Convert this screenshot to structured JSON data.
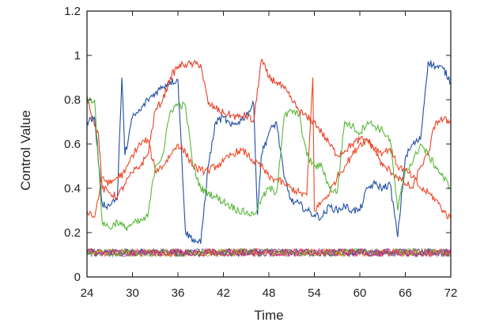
{
  "chart_data": {
    "type": "line",
    "xlabel": "Time",
    "ylabel": "Control Value",
    "xlim": [
      24,
      72
    ],
    "ylim": [
      0,
      1.2
    ],
    "x_ticks": [
      "24",
      "30",
      "36",
      "42",
      "48",
      "54",
      "60",
      "66",
      "72"
    ],
    "y_ticks": [
      "0",
      "0.2",
      "0.4",
      "0.6",
      "0.8",
      "1",
      "1.2"
    ],
    "grid": false,
    "legend": "none",
    "series": [
      {
        "color": "#1f4ea3",
        "x": [
          24,
          25,
          26,
          27,
          27.5,
          28,
          28.6,
          29,
          30,
          31,
          32,
          33,
          34,
          35,
          36,
          37,
          38,
          39,
          40,
          41,
          42,
          43,
          44,
          45,
          46,
          46.5,
          47,
          48,
          49,
          50,
          51,
          52,
          53,
          54,
          55,
          56,
          57,
          58,
          59,
          60,
          61,
          62,
          63,
          64,
          65,
          66,
          67,
          68,
          69,
          70,
          71,
          72
        ],
        "values": [
          0.7,
          0.72,
          0.33,
          0.32,
          0.35,
          0.35,
          0.9,
          0.55,
          0.72,
          0.75,
          0.8,
          0.83,
          0.86,
          0.88,
          0.89,
          0.2,
          0.17,
          0.15,
          0.5,
          0.7,
          0.72,
          0.68,
          0.7,
          0.73,
          0.78,
          0.28,
          0.55,
          0.65,
          0.7,
          0.45,
          0.34,
          0.33,
          0.3,
          0.28,
          0.27,
          0.32,
          0.3,
          0.32,
          0.3,
          0.3,
          0.4,
          0.42,
          0.4,
          0.42,
          0.18,
          0.54,
          0.6,
          0.62,
          0.97,
          0.95,
          0.94,
          0.88
        ]
      },
      {
        "color": "#e8402a",
        "x": [
          24,
          25,
          25.5,
          26,
          27,
          28,
          29,
          30,
          31,
          32,
          33,
          34,
          35,
          36,
          37,
          38,
          39,
          40,
          41,
          42,
          43,
          44,
          45,
          46,
          47,
          48,
          49,
          50,
          51,
          52,
          53,
          54,
          55,
          56,
          57,
          58,
          59,
          60,
          61,
          62,
          63,
          64,
          65,
          66,
          67,
          68,
          69,
          70,
          71,
          72
        ],
        "values": [
          0.82,
          0.68,
          0.65,
          0.4,
          0.38,
          0.36,
          0.42,
          0.47,
          0.5,
          0.55,
          0.75,
          0.8,
          0.9,
          0.95,
          0.96,
          0.96,
          0.96,
          0.78,
          0.76,
          0.74,
          0.73,
          0.72,
          0.73,
          0.7,
          0.98,
          0.9,
          0.88,
          0.85,
          0.8,
          0.75,
          0.72,
          0.7,
          0.65,
          0.6,
          0.55,
          0.57,
          0.6,
          0.62,
          0.62,
          0.57,
          0.5,
          0.48,
          0.45,
          0.42,
          0.4,
          0.5,
          0.55,
          0.7,
          0.71,
          0.7
        ]
      },
      {
        "color": "#ee4a26",
        "x": [
          24,
          25,
          26,
          27,
          28,
          29,
          30,
          31,
          32,
          33,
          34,
          35,
          36,
          37,
          38,
          39,
          40,
          41,
          42,
          43,
          44,
          45,
          46,
          47,
          48,
          49,
          50,
          51,
          52,
          53,
          53.8,
          54,
          55,
          56,
          57,
          58,
          59,
          60,
          61,
          62,
          63,
          64,
          65,
          66,
          67,
          68,
          69,
          70,
          71,
          72
        ],
        "values": [
          0.3,
          0.27,
          0.45,
          0.42,
          0.45,
          0.47,
          0.55,
          0.6,
          0.62,
          0.48,
          0.5,
          0.55,
          0.6,
          0.56,
          0.5,
          0.48,
          0.48,
          0.5,
          0.52,
          0.55,
          0.57,
          0.56,
          0.52,
          0.5,
          0.45,
          0.44,
          0.42,
          0.4,
          0.38,
          0.37,
          0.9,
          0.3,
          0.34,
          0.38,
          0.45,
          0.5,
          0.55,
          0.6,
          0.62,
          0.58,
          0.56,
          0.58,
          0.5,
          0.48,
          0.45,
          0.4,
          0.38,
          0.35,
          0.3,
          0.26
        ]
      },
      {
        "color": "#58b83a",
        "x": [
          24,
          25,
          26,
          27,
          28,
          29,
          30,
          31,
          32,
          33,
          34,
          35,
          36,
          37,
          38,
          39,
          40,
          41,
          42,
          43,
          44,
          45,
          46,
          47,
          48,
          49,
          50,
          51,
          52,
          53,
          54,
          55,
          56,
          57,
          58,
          59,
          60,
          61,
          62,
          63,
          64,
          65,
          66,
          67,
          68,
          69,
          70,
          71,
          72
        ],
        "values": [
          0.8,
          0.8,
          0.25,
          0.22,
          0.25,
          0.22,
          0.24,
          0.25,
          0.27,
          0.5,
          0.55,
          0.75,
          0.78,
          0.77,
          0.5,
          0.4,
          0.38,
          0.36,
          0.34,
          0.32,
          0.3,
          0.29,
          0.28,
          0.35,
          0.4,
          0.38,
          0.72,
          0.75,
          0.73,
          0.55,
          0.5,
          0.5,
          0.4,
          0.38,
          0.7,
          0.68,
          0.65,
          0.7,
          0.68,
          0.66,
          0.62,
          0.3,
          0.48,
          0.52,
          0.6,
          0.55,
          0.5,
          0.45,
          0.4
        ]
      }
    ]
  },
  "noise_colors": [
    "#111111",
    "#8a2be2",
    "#1f4ea3",
    "#58b83a",
    "#e8402a",
    "#e0b000",
    "#ff00aa",
    "#666666"
  ],
  "noise_level": 0.11,
  "axis_color": "#222222"
}
